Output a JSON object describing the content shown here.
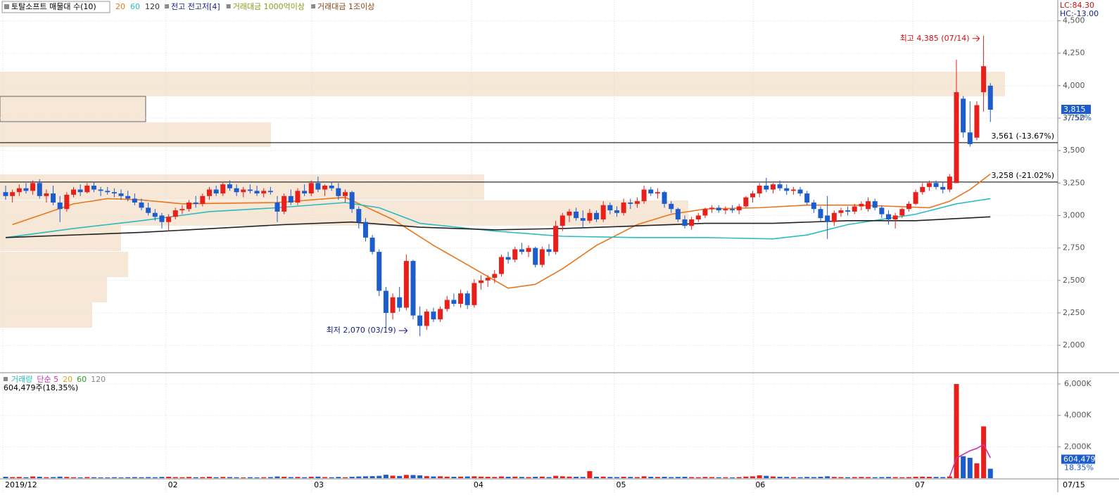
{
  "header": {
    "title": "토탈소프트 매물대 수(10)",
    "ma_labels": [
      {
        "text": "20",
        "color": "#e8761c"
      },
      {
        "text": "60",
        "color": "#2bbcc0"
      },
      {
        "text": "120",
        "color": "#333333"
      }
    ],
    "items": [
      {
        "text": "전고 전고저[4]",
        "color": "#1a1a8c"
      },
      {
        "text": "거래대금 1000억이상",
        "color": "#8a9a1a"
      },
      {
        "text": "거래대금 1조이상",
        "color": "#8b4513"
      }
    ],
    "lc": "LC:84.30",
    "hc": "HC:-13.00"
  },
  "chart_data": [
    {
      "type": "candlestick",
      "up_color": "#e8201c",
      "down_color": "#1c5ccc",
      "open": [
        3180,
        3150,
        3180,
        3210,
        3190,
        3250,
        3150,
        3170,
        3100,
        3050,
        3160,
        3200,
        3180,
        3230,
        3200,
        3190,
        3180,
        3170,
        3150,
        3130,
        3100,
        3060,
        3020,
        3000,
        2950,
        2990,
        3040,
        3050,
        3100,
        3090,
        3150,
        3200,
        3170,
        3240,
        3210,
        3180,
        3200,
        3190,
        3170,
        3190,
        3100,
        3030,
        3150,
        3100,
        3190,
        3170,
        3250,
        3200,
        3230,
        3210,
        3150,
        3180,
        3050,
        2950,
        2830,
        2720,
        2420,
        2250,
        2370,
        2290,
        2650,
        2230,
        2150,
        2260,
        2200,
        2280,
        2350,
        2320,
        2400,
        2310,
        2480,
        2500,
        2520,
        2550,
        2680,
        2660,
        2740,
        2720,
        2750,
        2620,
        2740,
        2720,
        2920,
        3000,
        3030,
        2980,
        2960,
        3020,
        2970,
        3080,
        3040,
        3020,
        3100,
        3090,
        3110,
        3200,
        3170,
        3180,
        3090,
        3050,
        2970,
        2920,
        2970,
        3000,
        3050,
        3060,
        3040,
        3050,
        3040,
        3070,
        3140,
        3170,
        3230,
        3200,
        3240,
        3210,
        3190,
        3200,
        3170,
        3100,
        3050,
        3000,
        2950,
        3020,
        3040,
        3030,
        3070,
        3050,
        3110,
        3060,
        3010,
        2970,
        3000,
        3050,
        3090,
        3180,
        3220,
        3250,
        3220,
        3200,
        3250,
        3900,
        3640,
        3600,
        3950,
        4000
      ],
      "high": [
        3230,
        3200,
        3240,
        3250,
        3270,
        3280,
        3200,
        3230,
        3150,
        3180,
        3220,
        3240,
        3250,
        3260,
        3220,
        3220,
        3210,
        3200,
        3190,
        3170,
        3130,
        3100,
        3050,
        3020,
        3010,
        3060,
        3080,
        3120,
        3150,
        3170,
        3220,
        3230,
        3260,
        3270,
        3240,
        3220,
        3240,
        3230,
        3210,
        3220,
        3150,
        3170,
        3200,
        3210,
        3240,
        3270,
        3300,
        3240,
        3260,
        3250,
        3200,
        3190,
        3070,
        2980,
        2850,
        2740,
        2450,
        2400,
        2450,
        2700,
        2660,
        2300,
        2280,
        2290,
        2300,
        2380,
        2400,
        2430,
        2420,
        2510,
        2540,
        2540,
        2580,
        2700,
        2720,
        2760,
        2790,
        2770,
        2760,
        2760,
        2780,
        2960,
        3020,
        3050,
        3060,
        3040,
        3050,
        3040,
        3110,
        3100,
        3070,
        3130,
        3130,
        3140,
        3230,
        3220,
        3210,
        3190,
        3110,
        3060,
        3000,
        2990,
        3020,
        3060,
        3080,
        3080,
        3070,
        3080,
        3090,
        3150,
        3190,
        3250,
        3290,
        3250,
        3270,
        3240,
        3220,
        3220,
        3190,
        3120,
        3070,
        3150,
        3040,
        3060,
        3070,
        3090,
        3110,
        3140,
        3130,
        3080,
        3040,
        3020,
        3060,
        3110,
        3200,
        3250,
        3270,
        3270,
        3260,
        3320,
        4200,
        3920,
        3880,
        3880,
        4385,
        4020
      ],
      "low": [
        3120,
        3100,
        3150,
        3170,
        3160,
        3130,
        3100,
        3080,
        2950,
        3030,
        3140,
        3150,
        3170,
        3180,
        3150,
        3160,
        3140,
        3120,
        3110,
        3080,
        3040,
        3000,
        2960,
        2900,
        2880,
        2970,
        3010,
        3030,
        3060,
        3070,
        3120,
        3150,
        3150,
        3190,
        3150,
        3140,
        3170,
        3150,
        3140,
        3160,
        2950,
        3010,
        3080,
        3080,
        3150,
        3150,
        3180,
        3150,
        3190,
        3120,
        3100,
        3020,
        2900,
        2800,
        2700,
        2380,
        2130,
        2200,
        2260,
        2270,
        2200,
        2070,
        2120,
        2180,
        2180,
        2260,
        2300,
        2290,
        2280,
        2290,
        2430,
        2450,
        2480,
        2530,
        2630,
        2640,
        2700,
        2680,
        2600,
        2600,
        2690,
        2700,
        2880,
        2950,
        2960,
        2900,
        2940,
        2950,
        2950,
        3010,
        2990,
        3000,
        3050,
        3060,
        3090,
        3150,
        3130,
        3060,
        3020,
        2950,
        2900,
        2890,
        2950,
        2980,
        3020,
        3020,
        3010,
        3020,
        3010,
        3060,
        3100,
        3140,
        3180,
        3170,
        3190,
        3160,
        3160,
        3150,
        3080,
        3020,
        2950,
        2820,
        2920,
        2990,
        3000,
        3010,
        3040,
        3030,
        3040,
        2980,
        2930,
        2900,
        2980,
        3030,
        3080,
        3160,
        3190,
        3200,
        3170,
        3180,
        3250,
        3600,
        3530,
        3580,
        3800,
        3720
      ],
      "close": [
        3150,
        3180,
        3210,
        3190,
        3250,
        3150,
        3170,
        3100,
        3050,
        3160,
        3200,
        3180,
        3230,
        3200,
        3190,
        3180,
        3170,
        3150,
        3130,
        3100,
        3060,
        3020,
        2990,
        2950,
        2990,
        3040,
        3050,
        3100,
        3090,
        3150,
        3200,
        3170,
        3240,
        3210,
        3180,
        3200,
        3190,
        3170,
        3190,
        3180,
        3030,
        3150,
        3100,
        3190,
        3170,
        3250,
        3200,
        3230,
        3210,
        3150,
        3180,
        3050,
        2950,
        2830,
        2720,
        2420,
        2250,
        2370,
        2290,
        2650,
        2230,
        2150,
        2260,
        2200,
        2280,
        2350,
        2320,
        2400,
        2310,
        2480,
        2500,
        2520,
        2550,
        2680,
        2660,
        2740,
        2720,
        2750,
        2620,
        2740,
        2720,
        2920,
        3000,
        3030,
        2980,
        2960,
        3020,
        2970,
        3080,
        3040,
        3020,
        3100,
        3090,
        3110,
        3200,
        3170,
        3180,
        3090,
        3050,
        2970,
        2920,
        2970,
        3000,
        3050,
        3060,
        3040,
        3050,
        3040,
        3070,
        3140,
        3170,
        3230,
        3200,
        3240,
        3210,
        3190,
        3200,
        3170,
        3100,
        3050,
        2980,
        2950,
        3020,
        3040,
        3030,
        3070,
        3090,
        3110,
        3060,
        3010,
        2970,
        3000,
        3050,
        3090,
        3180,
        3220,
        3250,
        3220,
        3200,
        3300,
        3950,
        3640,
        3550,
        3850,
        4150,
        3815
      ],
      "ylim": [
        1800,
        4660
      ],
      "yticks": [
        {
          "value": 2000,
          "label": "2,000"
        },
        {
          "value": 2250,
          "label": "2,250"
        },
        {
          "value": 2500,
          "label": "2,500"
        },
        {
          "value": 2750,
          "label": "2,750"
        },
        {
          "value": 3000,
          "label": "3,000"
        },
        {
          "value": 3250,
          "label": "3,250"
        },
        {
          "value": 3500,
          "label": "3,500"
        },
        {
          "value": 3750,
          "label": "3,750"
        },
        {
          "value": 4000,
          "label": "4,000"
        },
        {
          "value": 4250,
          "label": "4,250"
        },
        {
          "value": 4500,
          "label": "4,500"
        }
      ],
      "xticks": [
        {
          "value": 0,
          "label": "2019/12"
        },
        {
          "value": 24,
          "label": "02"
        },
        {
          "value": 45.5,
          "label": "03"
        },
        {
          "value": 69,
          "label": "04"
        },
        {
          "value": 90,
          "label": "05"
        },
        {
          "value": 110.5,
          "label": "06"
        },
        {
          "value": 134,
          "label": "07"
        }
      ],
      "last_date": "07/15",
      "moving_averages": [
        {
          "name": "20",
          "color": "#e8761c",
          "x": [
            1,
            10,
            15,
            20,
            26,
            40,
            50,
            57,
            63,
            68,
            74,
            78,
            82,
            87,
            93,
            98,
            103,
            111,
            118,
            125,
            131,
            136,
            139,
            142,
            145
          ],
          "values": [
            2930,
            3090,
            3130,
            3120,
            3090,
            3100,
            3140,
            2970,
            2770,
            2620,
            2440,
            2470,
            2590,
            2770,
            2930,
            3010,
            3050,
            3060,
            3080,
            3080,
            3070,
            3060,
            3110,
            3200,
            3320
          ]
        },
        {
          "name": "60",
          "color": "#2bbcc0",
          "x": [
            0,
            10,
            20,
            30,
            40,
            50,
            55,
            61,
            72,
            82,
            93,
            103,
            113,
            118,
            124,
            134,
            140,
            145
          ],
          "values": [
            2830,
            2900,
            2960,
            3030,
            3060,
            3100,
            3060,
            2940,
            2880,
            2840,
            2830,
            2830,
            2820,
            2850,
            2930,
            3010,
            3090,
            3130
          ]
        },
        {
          "name": "120",
          "color": "#222222",
          "x": [
            0,
            20,
            41,
            51,
            61,
            72,
            82,
            93,
            103,
            113,
            124,
            134,
            145
          ],
          "values": [
            2830,
            2870,
            2930,
            2950,
            2910,
            2890,
            2900,
            2920,
            2940,
            2940,
            2960,
            2960,
            2990
          ]
        }
      ],
      "levels": [
        {
          "value": 3561,
          "label": "3,561 (-13.67%)"
        },
        {
          "value": 3258,
          "label": "3,258 (-21.02%)"
        }
      ],
      "annotations": [
        {
          "text": "최고 4,385 (07/14)",
          "index": 144,
          "value": 4385,
          "color": "#d01010"
        },
        {
          "text": "최저 2,070 (03/19)",
          "index": 61,
          "value": 2070,
          "color": "#1a1a8c"
        }
      ],
      "last_price": {
        "value": 3815,
        "label": "3,815"
      },
      "change": "-7.52%"
    },
    {
      "type": "bar",
      "legend": [
        {
          "name": "거래량",
          "color": "#2bbcc0"
        },
        {
          "name": "단순 5",
          "color": "#cc33aa"
        },
        {
          "name": "20",
          "color": "#e8a01c"
        },
        {
          "name": "60",
          "color": "#2aa02a"
        },
        {
          "name": "120",
          "color": "#888888"
        }
      ],
      "info": "604,479주(18,35%)",
      "values": [
        90,
        70,
        80,
        60,
        110,
        90,
        60,
        70,
        100,
        80,
        60,
        50,
        70,
        60,
        50,
        50,
        60,
        50,
        60,
        70,
        60,
        70,
        60,
        80,
        90,
        70,
        60,
        80,
        60,
        70,
        90,
        60,
        80,
        70,
        60,
        50,
        60,
        50,
        60,
        70,
        110,
        90,
        70,
        80,
        60,
        90,
        100,
        70,
        60,
        80,
        60,
        90,
        110,
        120,
        130,
        150,
        220,
        160,
        140,
        210,
        200,
        180,
        130,
        110,
        120,
        100,
        90,
        100,
        110,
        120,
        100,
        90,
        80,
        110,
        90,
        100,
        80,
        70,
        90,
        100,
        70,
        150,
        120,
        100,
        90,
        80,
        450,
        90,
        100,
        80,
        70,
        90,
        80,
        70,
        120,
        90,
        80,
        90,
        70,
        80,
        90,
        70,
        60,
        80,
        70,
        60,
        60,
        50,
        70,
        100,
        120,
        180,
        150,
        110,
        90,
        80,
        70,
        60,
        80,
        70,
        90,
        120,
        80,
        70,
        60,
        70,
        80,
        70,
        60,
        70,
        80,
        70,
        60,
        70,
        90,
        100,
        90,
        80,
        70,
        110,
        6000,
        1400,
        1300,
        950,
        3300,
        604.479
      ],
      "ylim": [
        0,
        6630
      ],
      "yticks": [
        {
          "value": 2000,
          "label": "2,000K"
        },
        {
          "value": 4000,
          "label": "4,000K"
        },
        {
          "value": 6000,
          "label": "6,000K"
        }
      ],
      "ma5": {
        "name": "단순 5",
        "color": "#cc33aa",
        "x": [
          139,
          140,
          141,
          142,
          143,
          144,
          145
        ],
        "values": [
          100,
          1270,
          1520,
          1750,
          1900,
          2150,
          1300
        ]
      },
      "last_value": {
        "value": 604.479,
        "label": "604,479"
      },
      "last_ratio": "18.35%"
    }
  ]
}
